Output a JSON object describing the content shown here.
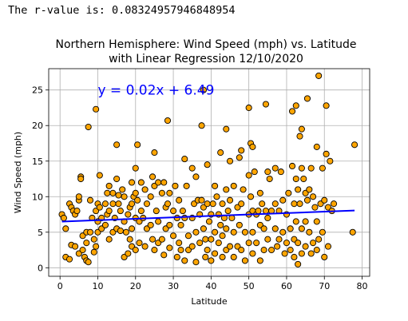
{
  "output_text": "The r-value is: 0.08324957946848954",
  "chart_data": {
    "type": "scatter",
    "title": "Northern Hemisphere: Wind Speed (mph) vs. Latitude",
    "subtitle": "with Linear Regression 12/10/2020",
    "xlabel": "Latitude",
    "ylabel": "Wind Speed (mph)",
    "xlim": [
      -3,
      82
    ],
    "ylim": [
      -1.2,
      28
    ],
    "xticks": [
      0,
      10,
      20,
      30,
      40,
      50,
      60,
      70,
      80
    ],
    "yticks": [
      0,
      5,
      10,
      15,
      20,
      25
    ],
    "grid": true,
    "point_color": "#ffa500",
    "point_edge": "#000000",
    "regression": {
      "slope": 0.02,
      "intercept": 6.49,
      "x_range": [
        0.5,
        78
      ],
      "color": "#0000ff",
      "label": "y = 0.02x + 6.49",
      "label_pos": [
        10,
        25
      ]
    },
    "points": [
      [
        0.5,
        7.5
      ],
      [
        1,
        7
      ],
      [
        1.5,
        5.5
      ],
      [
        1.5,
        1.5
      ],
      [
        2.5,
        9
      ],
      [
        2.5,
        1.2
      ],
      [
        3,
        8.5
      ],
      [
        3,
        3.2
      ],
      [
        3.5,
        8
      ],
      [
        4,
        7.5
      ],
      [
        4,
        3
      ],
      [
        4.5,
        8
      ],
      [
        5,
        9.5
      ],
      [
        5,
        10
      ],
      [
        5,
        2
      ],
      [
        5.5,
        12.8
      ],
      [
        5.5,
        12.5
      ],
      [
        6,
        4.5
      ],
      [
        6,
        2.5
      ],
      [
        6.5,
        1.5
      ],
      [
        7,
        5
      ],
      [
        7,
        3.5
      ],
      [
        7,
        1
      ],
      [
        7.5,
        19.8
      ],
      [
        7.5,
        0.8
      ],
      [
        8,
        9.5
      ],
      [
        8,
        5
      ],
      [
        8.5,
        7
      ],
      [
        9,
        4
      ],
      [
        9,
        2.2
      ],
      [
        9.5,
        22.3
      ],
      [
        9.5,
        8
      ],
      [
        9.5,
        3
      ],
      [
        10,
        9
      ],
      [
        10,
        6.5
      ],
      [
        10,
        5
      ],
      [
        10.5,
        13
      ],
      [
        10.5,
        8.5
      ],
      [
        11,
        7
      ],
      [
        11,
        5.5
      ],
      [
        12,
        9
      ],
      [
        12,
        6
      ],
      [
        12.5,
        10.5
      ],
      [
        12.5,
        7.5
      ],
      [
        13,
        11.5
      ],
      [
        13,
        8
      ],
      [
        13,
        4
      ],
      [
        14,
        10.5
      ],
      [
        14,
        9
      ],
      [
        14,
        5
      ],
      [
        14.5,
        7
      ],
      [
        15,
        17.3
      ],
      [
        15,
        12.5
      ],
      [
        15,
        5.5
      ],
      [
        15.5,
        10.2
      ],
      [
        15.5,
        9
      ],
      [
        16,
        8
      ],
      [
        16,
        5.2
      ],
      [
        16.5,
        11
      ],
      [
        17,
        10
      ],
      [
        17,
        6.5
      ],
      [
        17,
        1.5
      ],
      [
        17.5,
        5
      ],
      [
        18,
        7.5
      ],
      [
        18,
        2
      ],
      [
        18.5,
        8.5
      ],
      [
        18.5,
        4
      ],
      [
        19,
        12
      ],
      [
        19,
        9
      ],
      [
        19,
        5.5
      ],
      [
        19,
        3
      ],
      [
        19.5,
        10
      ],
      [
        20,
        14
      ],
      [
        20,
        10.5
      ],
      [
        20,
        7
      ],
      [
        20,
        2.5
      ],
      [
        20.5,
        17.3
      ],
      [
        20.5,
        9.5
      ],
      [
        21,
        6.5
      ],
      [
        21,
        3.5
      ],
      [
        21.5,
        12
      ],
      [
        21.5,
        8
      ],
      [
        22,
        7
      ],
      [
        22.5,
        11
      ],
      [
        22.5,
        3
      ],
      [
        23,
        9
      ],
      [
        23,
        5.5
      ],
      [
        24,
        10
      ],
      [
        24,
        6
      ],
      [
        24.5,
        12.8
      ],
      [
        24.5,
        4
      ],
      [
        25,
        16.2
      ],
      [
        25,
        11.5
      ],
      [
        25,
        2.5
      ],
      [
        25.5,
        8
      ],
      [
        26,
        12
      ],
      [
        26,
        6.5
      ],
      [
        26,
        3.5
      ],
      [
        27,
        10.5
      ],
      [
        27,
        4
      ],
      [
        27.5,
        12
      ],
      [
        27.5,
        1.8
      ],
      [
        28,
        8.5
      ],
      [
        28,
        5.5
      ],
      [
        28.5,
        20.7
      ],
      [
        28.5,
        9
      ],
      [
        29,
        10.5
      ],
      [
        29,
        6
      ],
      [
        29,
        2.8
      ],
      [
        30,
        8
      ],
      [
        30,
        4.5
      ],
      [
        30.5,
        11.5
      ],
      [
        31,
        7
      ],
      [
        31,
        1.5
      ],
      [
        31.5,
        9.5
      ],
      [
        31.5,
        3.5
      ],
      [
        32,
        6
      ],
      [
        32,
        2.5
      ],
      [
        32.5,
        8
      ],
      [
        33,
        15.3
      ],
      [
        33,
        7
      ],
      [
        33,
        1
      ],
      [
        33.5,
        11.5
      ],
      [
        34,
        4.5
      ],
      [
        34,
        2.5
      ],
      [
        35,
        14
      ],
      [
        35,
        7
      ],
      [
        35,
        3
      ],
      [
        35.5,
        9
      ],
      [
        36,
        12.8
      ],
      [
        36,
        5
      ],
      [
        36,
        0.8
      ],
      [
        36.5,
        9.5
      ],
      [
        37,
        7.5
      ],
      [
        37,
        3.5
      ],
      [
        37.5,
        20
      ],
      [
        37.5,
        9.5
      ],
      [
        38,
        25
      ],
      [
        38,
        8.5
      ],
      [
        38,
        5.5
      ],
      [
        38.5,
        4
      ],
      [
        38.5,
        1.5
      ],
      [
        39,
        14.5
      ],
      [
        39,
        9
      ],
      [
        39,
        2.5
      ],
      [
        39.5,
        6.5
      ],
      [
        40,
        7.5
      ],
      [
        40,
        4
      ],
      [
        40,
        1
      ],
      [
        40.5,
        9
      ],
      [
        41,
        11.5
      ],
      [
        41,
        5
      ],
      [
        41,
        2
      ],
      [
        41.5,
        10
      ],
      [
        42,
        7.5
      ],
      [
        42,
        3.5
      ],
      [
        42.5,
        16.2
      ],
      [
        42.5,
        6
      ],
      [
        43,
        9
      ],
      [
        43,
        4.5
      ],
      [
        43,
        1.5
      ],
      [
        43.5,
        7
      ],
      [
        44,
        19.5
      ],
      [
        44,
        11
      ],
      [
        44,
        5.5
      ],
      [
        44,
        2.5
      ],
      [
        44.5,
        8
      ],
      [
        45,
        15
      ],
      [
        45,
        9.5
      ],
      [
        45,
        3
      ],
      [
        45.5,
        7
      ],
      [
        46,
        11.5
      ],
      [
        46,
        5
      ],
      [
        46,
        1.5
      ],
      [
        47,
        8.5
      ],
      [
        47,
        3
      ],
      [
        47.5,
        15.5
      ],
      [
        47.5,
        6
      ],
      [
        48,
        16.5
      ],
      [
        48,
        9
      ],
      [
        48,
        2.5
      ],
      [
        48.5,
        11
      ],
      [
        49,
        5
      ],
      [
        49,
        1
      ],
      [
        50,
        22.5
      ],
      [
        50,
        13
      ],
      [
        50,
        7.5
      ],
      [
        50,
        3.5
      ],
      [
        50.5,
        17.5
      ],
      [
        50.5,
        10
      ],
      [
        51,
        17
      ],
      [
        51,
        8
      ],
      [
        51,
        5
      ],
      [
        51,
        2
      ],
      [
        51.5,
        13.5
      ],
      [
        52,
        7.5
      ],
      [
        52,
        3.5
      ],
      [
        52.5,
        8
      ],
      [
        53,
        10.5
      ],
      [
        53,
        6
      ],
      [
        53,
        1
      ],
      [
        53.5,
        9
      ],
      [
        54,
        5.5
      ],
      [
        54,
        2.5
      ],
      [
        54.5,
        23
      ],
      [
        54.5,
        8
      ],
      [
        55,
        13.5
      ],
      [
        55,
        7
      ],
      [
        55,
        4
      ],
      [
        55.5,
        12.5
      ],
      [
        56,
        8
      ],
      [
        56,
        2.5
      ],
      [
        57,
        14
      ],
      [
        57,
        9
      ],
      [
        57,
        5.5
      ],
      [
        57.5,
        3
      ],
      [
        58,
        8
      ],
      [
        58,
        4
      ],
      [
        58.5,
        13.5
      ],
      [
        59,
        9.5
      ],
      [
        59,
        5
      ],
      [
        59.5,
        2
      ],
      [
        60,
        7.5
      ],
      [
        60,
        3.5
      ],
      [
        60.5,
        10.5
      ],
      [
        61,
        5.5
      ],
      [
        61,
        2.5
      ],
      [
        61.5,
        22
      ],
      [
        61.5,
        14.3
      ],
      [
        62,
        9
      ],
      [
        62,
        4
      ],
      [
        62,
        1.5
      ],
      [
        62.5,
        22.8
      ],
      [
        62.5,
        12.5
      ],
      [
        62.5,
        6.5
      ],
      [
        63,
        11
      ],
      [
        63,
        3.5
      ],
      [
        63,
        0.5
      ],
      [
        63.5,
        18.5
      ],
      [
        63.5,
        9
      ],
      [
        64,
        19.5
      ],
      [
        64,
        14
      ],
      [
        64,
        5.5
      ],
      [
        64,
        2
      ],
      [
        64.5,
        12.5
      ],
      [
        65,
        10.5
      ],
      [
        65,
        6.5
      ],
      [
        65,
        3
      ],
      [
        65.5,
        23.8
      ],
      [
        65.5,
        9.5
      ],
      [
        66,
        11
      ],
      [
        66,
        5
      ],
      [
        66.5,
        14
      ],
      [
        66.5,
        2
      ],
      [
        67,
        10
      ],
      [
        67,
        3.5
      ],
      [
        67.5,
        8.5
      ],
      [
        68,
        17
      ],
      [
        68,
        6.5
      ],
      [
        68,
        2.5
      ],
      [
        68.5,
        27
      ],
      [
        68.5,
        4
      ],
      [
        69,
        9
      ],
      [
        69.5,
        14
      ],
      [
        69.5,
        5
      ],
      [
        70,
        9.5
      ],
      [
        70,
        1.5
      ],
      [
        70.5,
        22.8
      ],
      [
        70.5,
        16
      ],
      [
        71,
        8.5
      ],
      [
        71,
        3
      ],
      [
        71.5,
        15
      ],
      [
        72,
        8
      ],
      [
        72.5,
        9
      ],
      [
        77.5,
        5
      ],
      [
        78,
        17.3
      ]
    ]
  }
}
